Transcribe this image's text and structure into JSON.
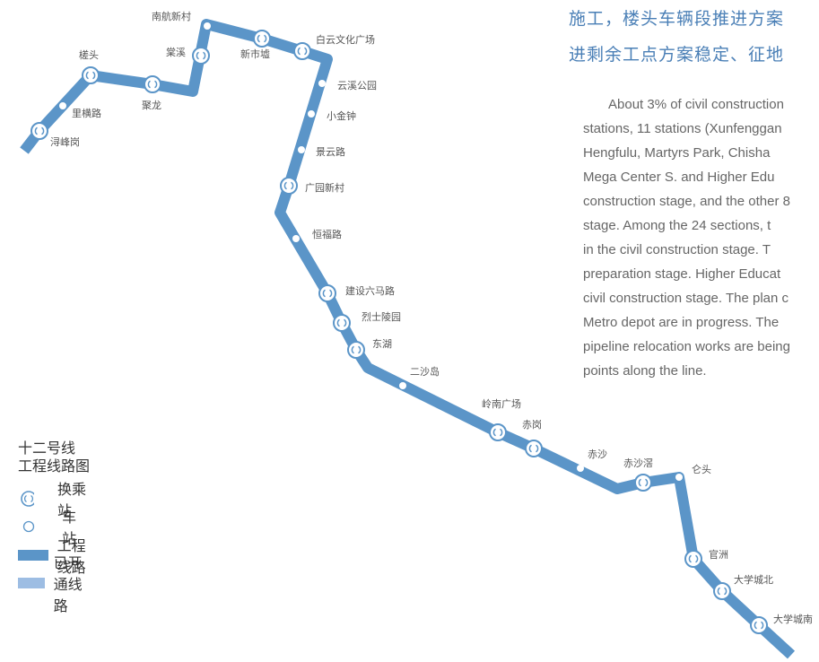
{
  "heading": {
    "line1": "施工，楼头车辆段推进方案",
    "line2": "进剩余工点方案稳定、征地"
  },
  "body_lines": [
    "About 3% of civil construction",
    "stations, 11 stations (Xunfenggan",
    "Hengfulu, Martyrs Park, Chisha",
    "Mega Center S. and Higher Edu",
    "construction stage, and the other 8",
    "stage. Among the 24 sections, t",
    "in the civil construction stage. T",
    "preparation stage. Higher Educat",
    "civil construction stage. The plan c",
    "Metro depot are in progress. The",
    "pipeline relocation works are being",
    "points along the line."
  ],
  "legend": {
    "title_line1": "十二号线",
    "title_line2": "工程线路图",
    "items": [
      {
        "label": "换乘站",
        "symbol": "interchange-icon"
      },
      {
        "label": "车站",
        "symbol": "station-icon"
      },
      {
        "label": "工程线路",
        "color": "#5b95c8"
      },
      {
        "label": "已开通线路",
        "color": "#9dbde3"
      }
    ]
  },
  "colors": {
    "line": "#5b95c8",
    "opened_line": "#9dbde3",
    "heading": "#4a7fb6"
  },
  "stations": [
    {
      "name": "浔峰岗",
      "type": "interchange"
    },
    {
      "name": "里横路",
      "type": "station"
    },
    {
      "name": "槎头",
      "type": "interchange"
    },
    {
      "name": "聚龙",
      "type": "interchange"
    },
    {
      "name": "棠溪",
      "type": "interchange"
    },
    {
      "name": "南航新村",
      "type": "station"
    },
    {
      "name": "新市墟",
      "type": "interchange"
    },
    {
      "name": "白云文化广场",
      "type": "interchange"
    },
    {
      "name": "云溪公园",
      "type": "station"
    },
    {
      "name": "小金钟",
      "type": "station"
    },
    {
      "name": "景云路",
      "type": "station"
    },
    {
      "name": "广园新村",
      "type": "interchange"
    },
    {
      "name": "恒福路",
      "type": "station"
    },
    {
      "name": "建设六马路",
      "type": "interchange"
    },
    {
      "name": "烈士陵园",
      "type": "interchange"
    },
    {
      "name": "东湖",
      "type": "interchange"
    },
    {
      "name": "二沙岛",
      "type": "station"
    },
    {
      "name": "岭南广场",
      "type": "interchange"
    },
    {
      "name": "赤岗",
      "type": "interchange"
    },
    {
      "name": "赤沙",
      "type": "station"
    },
    {
      "name": "赤沙滘",
      "type": "interchange"
    },
    {
      "name": "仑头",
      "type": "station"
    },
    {
      "name": "官洲",
      "type": "interchange"
    },
    {
      "name": "大学城北",
      "type": "interchange"
    },
    {
      "name": "大学城南",
      "type": "interchange"
    }
  ]
}
